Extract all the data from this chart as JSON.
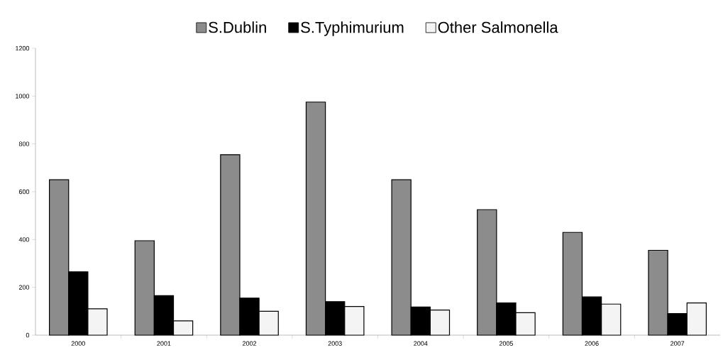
{
  "chart_data": {
    "type": "bar",
    "categories": [
      "2000",
      "2001",
      "2002",
      "2003",
      "2004",
      "2005",
      "2006",
      "2007"
    ],
    "series": [
      {
        "name": "S.Dublin",
        "color": "#8c8c8c",
        "values": [
          650,
          395,
          755,
          975,
          650,
          525,
          430,
          355
        ]
      },
      {
        "name": "S.Typhimurium",
        "color": "#000000",
        "values": [
          265,
          165,
          155,
          140,
          118,
          135,
          160,
          90
        ]
      },
      {
        "name": "Other Salmonella",
        "color": "#f4f4f4",
        "values": [
          110,
          60,
          100,
          120,
          105,
          94,
          130,
          135
        ]
      }
    ],
    "ylim": [
      0,
      1200
    ],
    "yticks": [
      0,
      200,
      400,
      600,
      800,
      1000,
      1200
    ],
    "grid": false,
    "legend": "top"
  }
}
